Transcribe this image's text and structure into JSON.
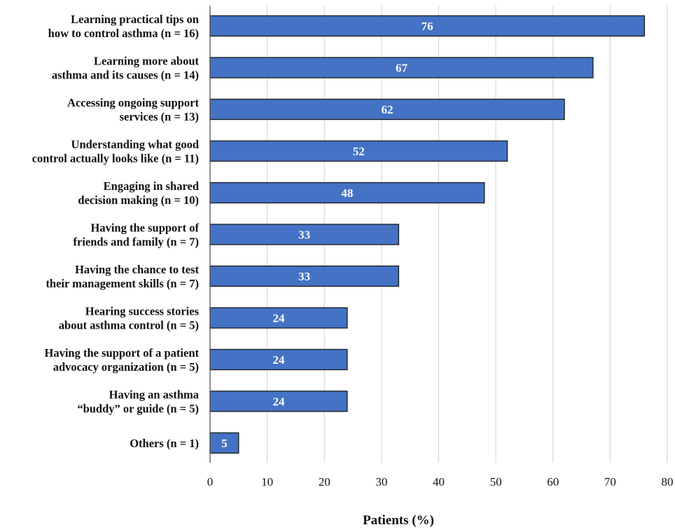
{
  "chart_data": {
    "type": "bar",
    "orientation": "horizontal",
    "categories": [
      [
        "Learning practical tips on",
        "how to control asthma (n = 16)"
      ],
      [
        "Learning more about",
        "asthma and its causes (n = 14)"
      ],
      [
        "Accessing ongoing support",
        "services (n = 13)"
      ],
      [
        "Understanding what good",
        "control  actually looks like (n = 11)"
      ],
      [
        "Engaging in shared",
        "decision making (n = 10)"
      ],
      [
        "Having the support of",
        "friends and family (n = 7)"
      ],
      [
        "Having the chance to test",
        "their management skills (n = 7)"
      ],
      [
        "Hearing success stories",
        "about asthma control (n = 5)"
      ],
      [
        "Having the support  of a patient",
        "advocacy organization (n = 5)"
      ],
      [
        "Having an asthma",
        "“buddy” or guide (n = 5)"
      ],
      [
        "Others (n = 1)"
      ]
    ],
    "values": [
      76,
      67,
      62,
      52,
      48,
      33,
      33,
      24,
      24,
      24,
      5
    ],
    "data_labels": [
      "76",
      "67",
      "62",
      "52",
      "48",
      "33",
      "33",
      "24",
      "24",
      "24",
      "5"
    ],
    "xlabel": "Patients (%)",
    "ylabel": "",
    "title": "",
    "xlim": [
      0,
      80
    ],
    "xticks": [
      0,
      10,
      20,
      30,
      40,
      50,
      60,
      70,
      80
    ],
    "grid": "vertical",
    "legend": "none",
    "bar_color": "#4472c4",
    "bar_edge_color": "#1a1a1a",
    "grid_color": "#d9d9d9"
  }
}
